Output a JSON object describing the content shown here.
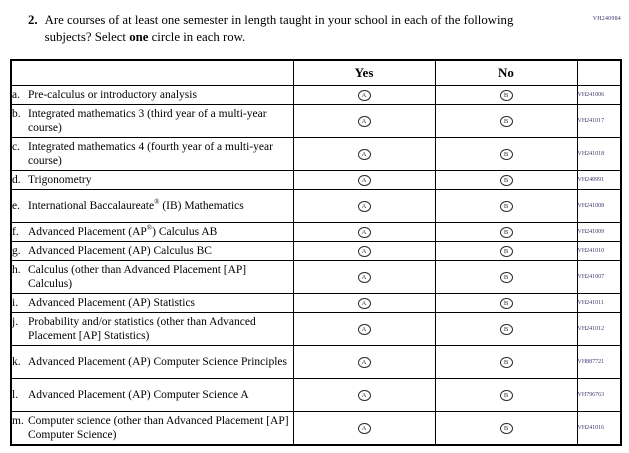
{
  "form_code": "VH240984",
  "question": {
    "number": "2.",
    "text_before_bold": "Are courses of at least one semester in length taught in your school in each of the following subjects? Select ",
    "bold_word": "one",
    "text_after_bold": " circle in each row."
  },
  "table": {
    "headers": {
      "label": "",
      "yes": "Yes",
      "no": "No",
      "code": ""
    },
    "bubbles": {
      "yes": "A",
      "no": "B"
    },
    "rows": [
      {
        "letter": "a.",
        "text": "Pre-calculus or introductory analysis",
        "code": "VH241006"
      },
      {
        "letter": "b.",
        "text": "Integrated mathematics 3 (third year of a multi-year course)",
        "code": "VH241017"
      },
      {
        "letter": "c.",
        "text": "Integrated mathematics 4 (fourth year of a multi-year course)",
        "code": "VH241018"
      },
      {
        "letter": "d.",
        "text": "Trigonometry",
        "code": "VH240991"
      },
      {
        "letter": "e.",
        "text": "International Baccalaureate® (IB) Mathematics",
        "code": "VH241008"
      },
      {
        "letter": "f.",
        "text": "Advanced Placement (AP®) Calculus AB",
        "code": "VH241009"
      },
      {
        "letter": "g.",
        "text": "Advanced Placement (AP) Calculus BC",
        "code": "VH241010"
      },
      {
        "letter": "h.",
        "text": "Calculus (other than Advanced Placement [AP] Calculus)",
        "code": "VH241007"
      },
      {
        "letter": "i.",
        "text": "Advanced Placement (AP) Statistics",
        "code": "VH241011"
      },
      {
        "letter": "j.",
        "text": "Probability and/or statistics (other than Advanced Placement [AP] Statistics)",
        "code": "VH241012"
      },
      {
        "letter": "k.",
        "text": "Advanced Placement (AP) Computer Science Principles",
        "code": "VH887721"
      },
      {
        "letter": "l.",
        "text": "Advanced Placement (AP) Computer Science A",
        "code": "VH796763"
      },
      {
        "letter": "m.",
        "text": "Computer science (other than Advanced Placement [AP] Computer Science)",
        "code": "VH241016"
      }
    ]
  },
  "colors": {
    "code_text": "#3b3b6e",
    "border": "#000000"
  }
}
